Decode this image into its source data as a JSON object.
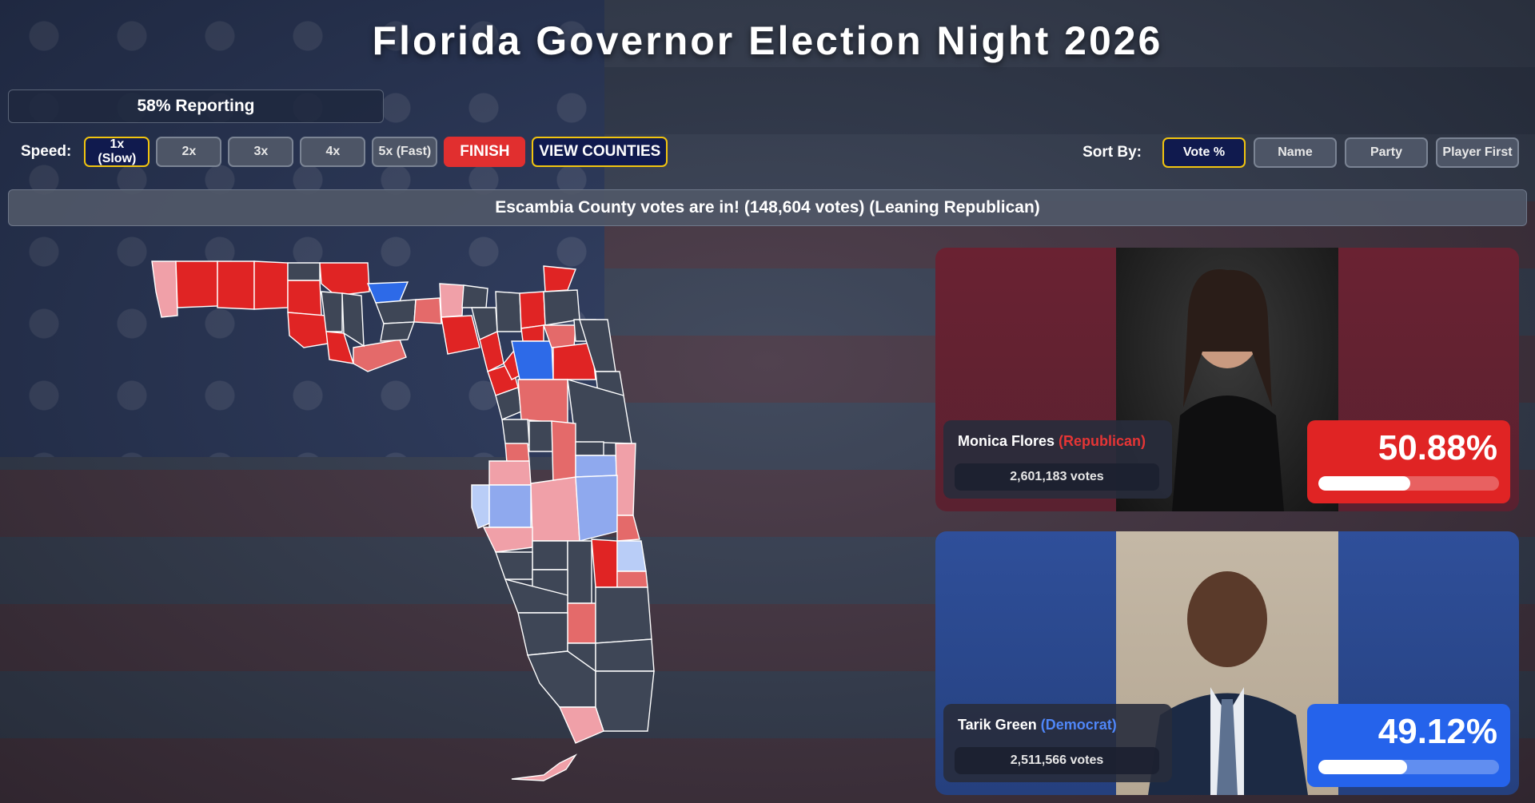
{
  "header": {
    "title": "Florida Governor Election Night 2026"
  },
  "reporting": {
    "text": "58% Reporting",
    "percent": 58
  },
  "controls": {
    "speed_label": "Speed:",
    "speeds": [
      "1x (Slow)",
      "2x",
      "3x",
      "4x",
      "5x (Fast)"
    ],
    "active_speed": "1x (Slow)",
    "finish_label": "FINISH",
    "view_counties_label": "VIEW COUNTIES"
  },
  "sort": {
    "label": "Sort By:",
    "options": [
      "Vote %",
      "Name",
      "Party",
      "Player First"
    ],
    "active": "Vote %"
  },
  "banner": {
    "text": "Escambia County votes are in! (148,604 votes) (Leaning Republican)"
  },
  "colors": {
    "strong_republican": "#e02424",
    "lean_republican": "#e46a6a",
    "tilt_republican": "#f0a0a8",
    "strong_democrat": "#2d6ae8",
    "lean_democrat": "#8fa9ee",
    "tilt_democrat": "#b9cdf7",
    "not_reported": "#3e4656"
  },
  "candidates": [
    {
      "name": "Monica Flores",
      "party": "(Republican)",
      "votes": "2,601,183 votes",
      "percent_text": "50.88%",
      "percent": 50.88,
      "photo_icon": "candidate-photo-woman"
    },
    {
      "name": "Tarik Green",
      "party": "(Democrat)",
      "votes": "2,511,566 votes",
      "percent_text": "49.12%",
      "percent": 49.12,
      "photo_icon": "candidate-photo-man"
    }
  ]
}
